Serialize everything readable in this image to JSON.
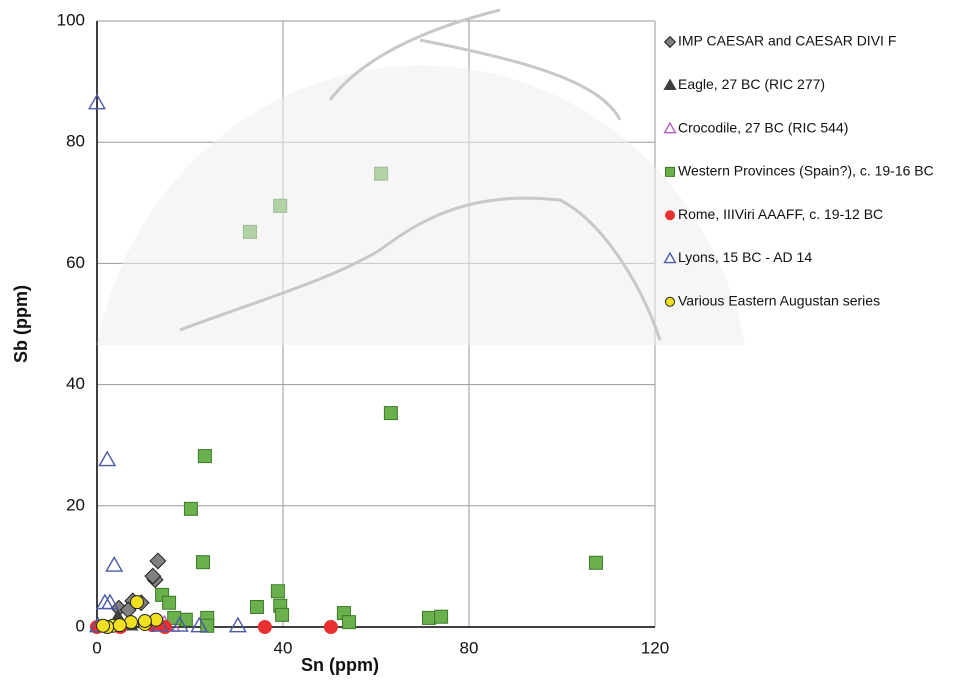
{
  "chart_data": {
    "type": "scatter",
    "x_label": "Sn (ppm)",
    "y_label": "Sb (ppm)",
    "xlim": [
      0,
      120
    ],
    "ylim": [
      0,
      100
    ],
    "xticks": [
      0,
      40,
      80,
      120
    ],
    "yticks": [
      0,
      20,
      40,
      60,
      80,
      100
    ],
    "grid": true,
    "series": [
      {
        "name": "IMP CAESAR and CAESAR DIVI F",
        "color": "#808080",
        "marker": "diamond",
        "x": [
          13.1,
          12.5,
          12,
          7.7,
          4.7,
          9.5,
          6.7
        ],
        "y": [
          10.9,
          7.8,
          8.4,
          4.3,
          3.1,
          4.0,
          2.8
        ]
      },
      {
        "name": "Eagle, 27 BC (RIC 277)",
        "color": "#404040",
        "marker": "triangle",
        "x": [
          4.5,
          7
        ],
        "y": [
          1.5,
          0.5
        ]
      },
      {
        "name": "Crocodile, 27 BC (RIC 544)",
        "color": "#b060c0",
        "marker": "open-triangle",
        "x": [
          14.5,
          16
        ],
        "y": [
          0.5,
          0.3
        ]
      },
      {
        "name": "Western Provinces (Spain?), c. 19-16 BC",
        "color": "#6ab04c",
        "marker": "square",
        "x": [
          32.9,
          39.4,
          61.1,
          63.2,
          23.2,
          20.2,
          22.8,
          107.3,
          38.9,
          39.4,
          34.4,
          39.8,
          53.1,
          54.2,
          71.4,
          74,
          23.7,
          14,
          15.5,
          19.1,
          23.7,
          16.6
        ],
        "y": [
          65.2,
          69.5,
          74.8,
          35.3,
          28.2,
          19.5,
          10.7,
          10.6,
          5.9,
          3.5,
          3.3,
          2.0,
          2.3,
          0.8,
          1.5,
          1.7,
          1.5,
          5.3,
          4,
          1.2,
          0.2,
          1.5
        ]
      },
      {
        "name": "Rome, IIIViri AAAFF, c. 19-12 BC",
        "color": "#e83030",
        "marker": "circle",
        "x": [
          0,
          36.1,
          50.3,
          14.6,
          12,
          5
        ],
        "y": [
          0,
          0,
          0,
          0,
          0.3,
          0
        ]
      },
      {
        "name": "Lyons, 15 BC - AD 14",
        "color": "#4a5aa8",
        "marker": "open-triangle",
        "x": [
          0,
          2.2,
          3.7,
          1.7,
          2.8,
          22,
          30.3,
          0.2,
          17.8,
          13.5
        ],
        "y": [
          86.5,
          27.6,
          10.2,
          4,
          4,
          0.2,
          0.2,
          0.2,
          0.3,
          0.3
        ]
      },
      {
        "name": "Various Eastern Augustan series",
        "color": "#f0e020",
        "marker": "circle-outlined",
        "x": [
          8.6,
          12.7,
          10.3,
          7.3,
          3.4,
          2.2,
          4.9,
          1.3,
          10.3
        ],
        "y": [
          4.1,
          1.2,
          0.5,
          0.8,
          0.2,
          0,
          0.3,
          0.2,
          1
        ]
      }
    ]
  }
}
